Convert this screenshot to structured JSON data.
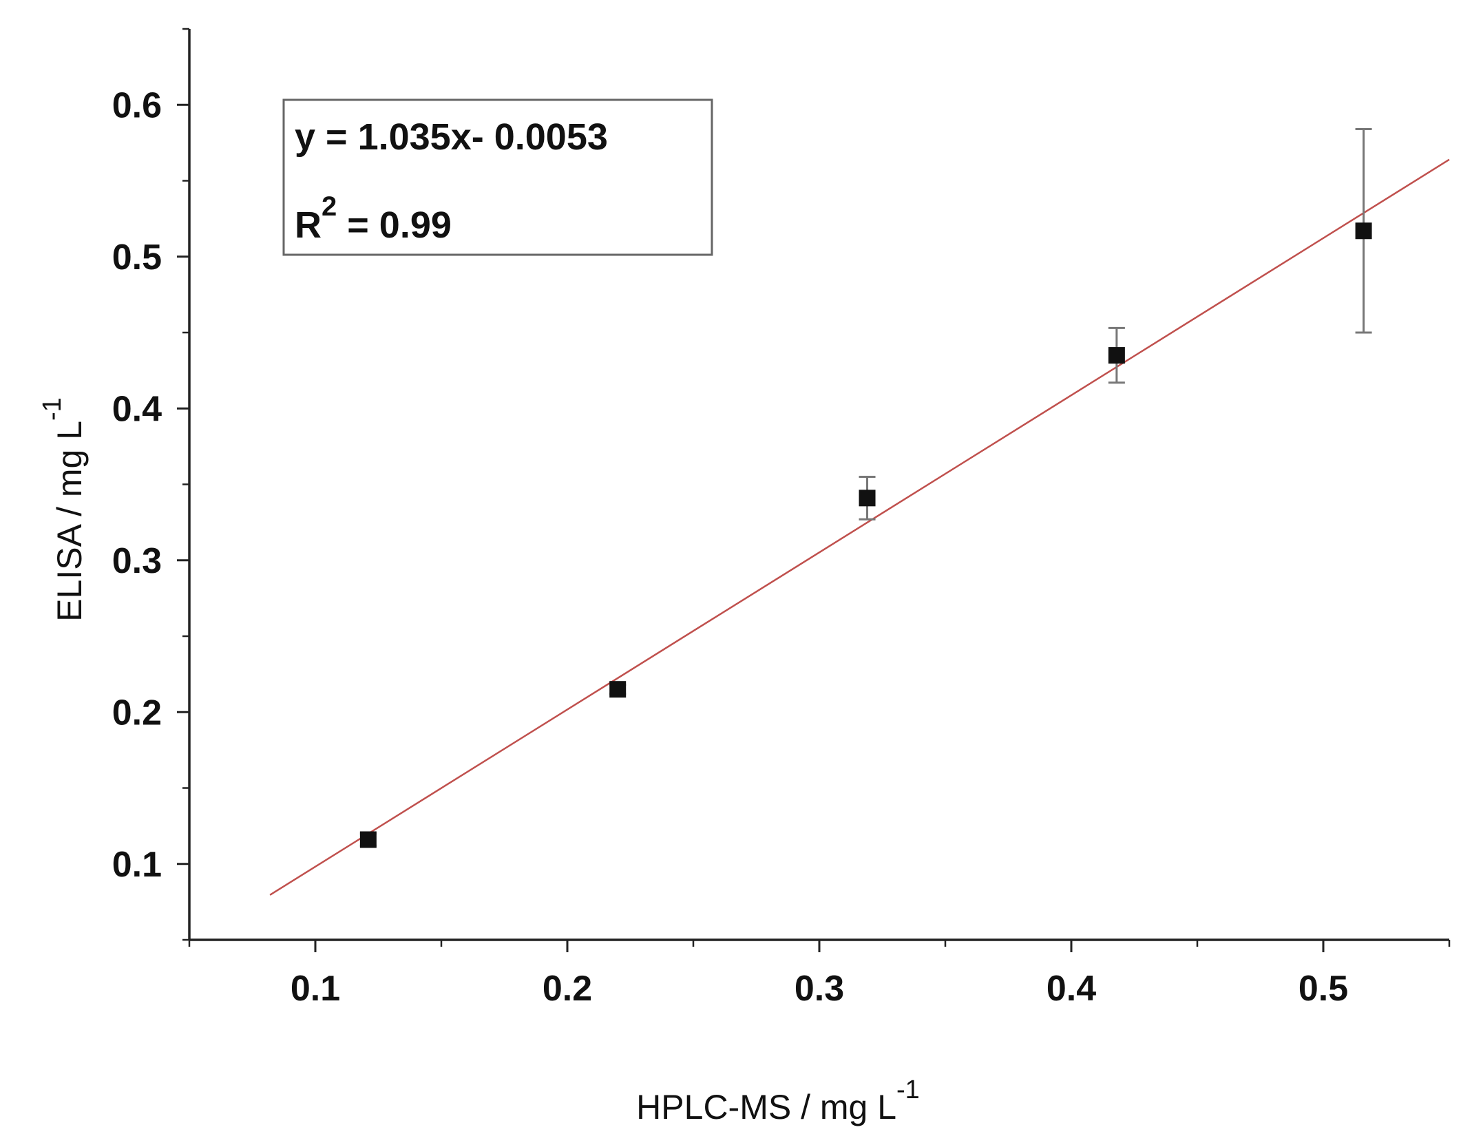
{
  "chart_data": {
    "type": "scatter",
    "xlabel": "HPLC-MS / mg L",
    "xlabel_sup": "-1",
    "ylabel": "ELISA / mg L",
    "ylabel_sup": "-1",
    "xlim": [
      0.05,
      0.55
    ],
    "ylim": [
      0.05,
      0.65
    ],
    "x_ticks": [
      "0.1",
      "0.2",
      "0.3",
      "0.4",
      "0.5"
    ],
    "y_ticks": [
      "0.1",
      "0.2",
      "0.3",
      "0.4",
      "0.5",
      "0.6"
    ],
    "grid": false,
    "series": [
      {
        "points": [
          {
            "x": 0.121,
            "y": 0.116,
            "err": 0.004
          },
          {
            "x": 0.22,
            "y": 0.215,
            "err": 0.003
          },
          {
            "x": 0.319,
            "y": 0.341,
            "err": 0.014
          },
          {
            "x": 0.418,
            "y": 0.435,
            "err": 0.018
          },
          {
            "x": 0.516,
            "y": 0.517,
            "err": 0.067
          }
        ],
        "color": "#111111"
      }
    ],
    "fit_line": {
      "slope": 1.035,
      "intercept": -0.0053,
      "x_range": [
        0.082,
        0.55
      ],
      "color": "#c0504d"
    },
    "annotation": {
      "equation": "y = 1.035x- 0.0053",
      "r2_prefix": "R",
      "r2_sup": "2",
      "r2_suffix": " = 0.99"
    }
  }
}
